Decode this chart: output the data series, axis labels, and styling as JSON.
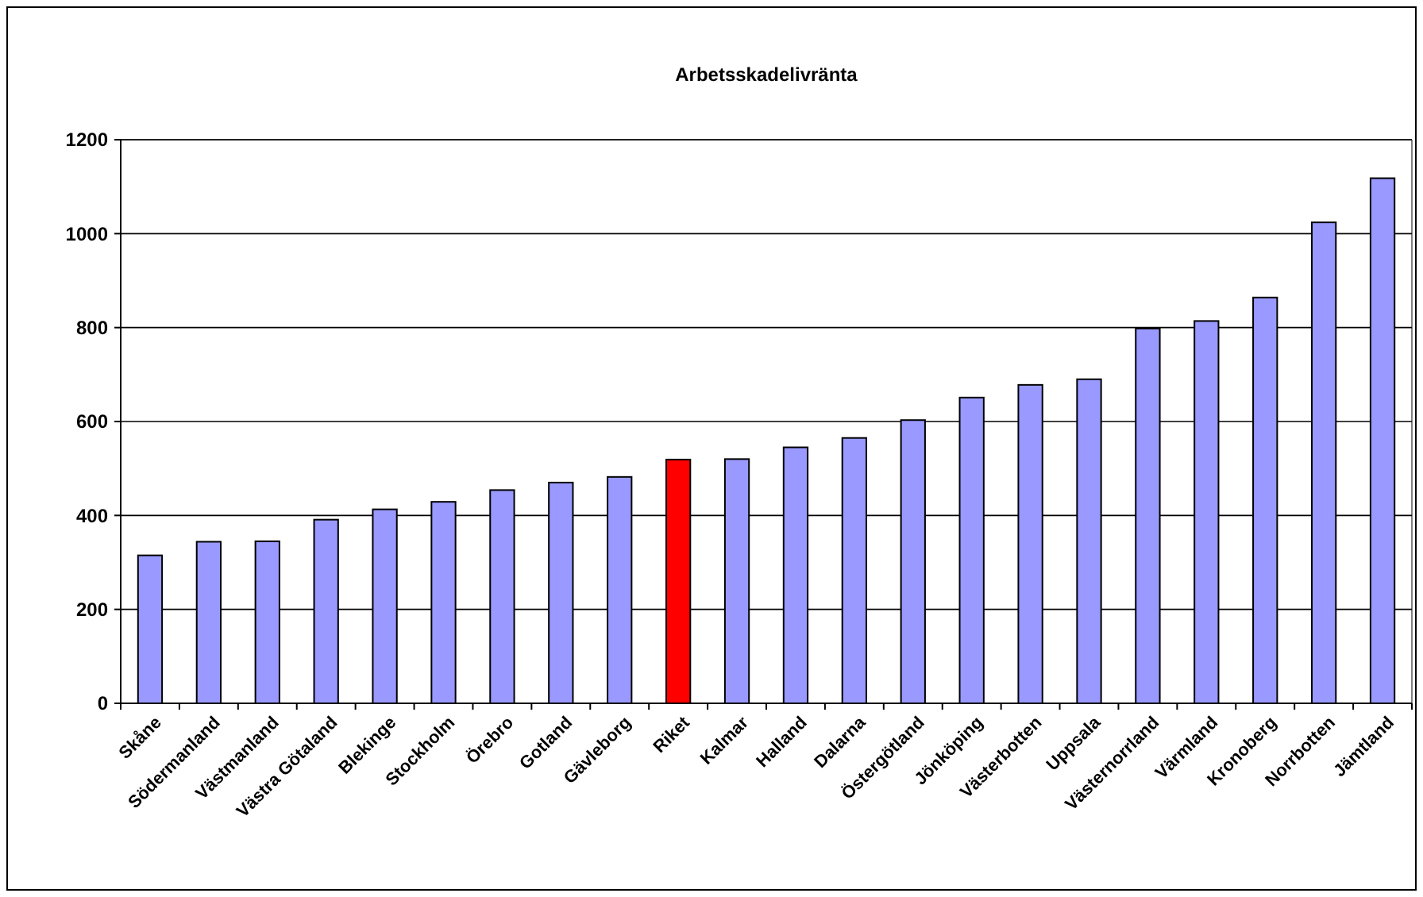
{
  "chart_data": {
    "type": "bar",
    "title": "Arbetsskadelivränta",
    "categories": [
      "Skåne",
      "Södermanland",
      "Västmanland",
      "Västra Götaland",
      "Blekinge",
      "Stockholm",
      "Örebro",
      "Gotland",
      "Gävleborg",
      "Riket",
      "Kalmar",
      "Halland",
      "Dalarna",
      "Östergötland",
      "Jönköping",
      "Västerbotten",
      "Uppsala",
      "Västernorrland",
      "Värmland",
      "Kronoberg",
      "Norrbotten",
      "Jämtland"
    ],
    "values": [
      315,
      344,
      345,
      391,
      413,
      429,
      454,
      470,
      482,
      519,
      520,
      545,
      565,
      603,
      651,
      678,
      690,
      798,
      814,
      864,
      1024,
      1118
    ],
    "colors": [
      "#9999ff",
      "#9999ff",
      "#9999ff",
      "#9999ff",
      "#9999ff",
      "#9999ff",
      "#9999ff",
      "#9999ff",
      "#9999ff",
      "#ff0000",
      "#9999ff",
      "#9999ff",
      "#9999ff",
      "#9999ff",
      "#9999ff",
      "#9999ff",
      "#9999ff",
      "#9999ff",
      "#9999ff",
      "#9999ff",
      "#9999ff",
      "#9999ff"
    ],
    "ylim": [
      0,
      1200
    ],
    "yticks": [
      0,
      200,
      400,
      600,
      800,
      1000,
      1200
    ],
    "grid": "y"
  }
}
